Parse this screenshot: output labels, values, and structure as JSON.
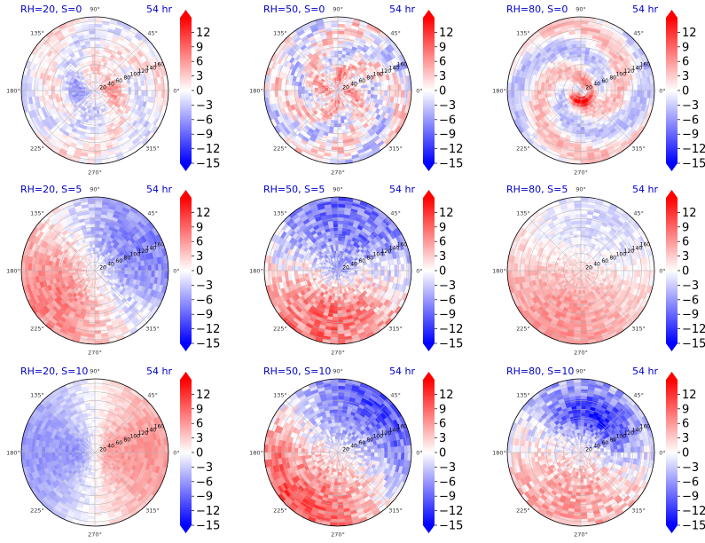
{
  "figure": {
    "rows": 3,
    "cols": 3,
    "time_label": "54 hr",
    "title_color": "#0000cc",
    "colormap": [
      "#0000ff",
      "#ffffff",
      "#ff0000"
    ],
    "colorbar_ticks": [
      "12",
      "9",
      "6",
      "3",
      "0",
      "−3",
      "−6",
      "−9",
      "−12",
      "−15"
    ],
    "colorbar_range": [
      -15,
      15
    ],
    "angle_labels": [
      "0°",
      "45°",
      "90°",
      "135°",
      "180°",
      "225°",
      "270°",
      "315°"
    ],
    "radial_labels": [
      "20",
      "40",
      "60",
      "80",
      "100",
      "120",
      "140",
      "160"
    ]
  },
  "chart_data": [
    {
      "type": "heatmap",
      "projection": "polar",
      "title": "RH=20, S=0",
      "time": "54 hr",
      "r_range": [
        0,
        170
      ],
      "theta_range": [
        0,
        360
      ],
      "pattern": "weak mixed anomalies, mostly near zero with scattered red near center",
      "value_range": [
        -6,
        6
      ],
      "colorbar_ticks": [
        12,
        9,
        6,
        3,
        0,
        -3,
        -6,
        -9,
        -12,
        -15
      ]
    },
    {
      "type": "heatmap",
      "projection": "polar",
      "title": "RH=50, S=0",
      "time": "54 hr",
      "r_range": [
        0,
        170
      ],
      "theta_range": [
        0,
        360
      ],
      "pattern": "mixed small-scale positive and negative anomalies, red concentrated near center",
      "value_range": [
        -9,
        9
      ],
      "colorbar_ticks": [
        12,
        9,
        6,
        3,
        0,
        -3,
        -6,
        -9,
        -12,
        -15
      ]
    },
    {
      "type": "heatmap",
      "projection": "polar",
      "title": "RH=80, S=0",
      "time": "54 hr",
      "r_range": [
        0,
        170
      ],
      "theta_range": [
        0,
        360
      ],
      "pattern": "strong positive ring near center (eyewall), positive spiral bands, weak negative elsewhere",
      "value_range": [
        -9,
        15
      ],
      "colorbar_ticks": [
        12,
        9,
        6,
        3,
        0,
        -3,
        -6,
        -9,
        -12,
        -15
      ]
    },
    {
      "type": "heatmap",
      "projection": "polar",
      "title": "RH=20, S=5",
      "time": "54 hr",
      "r_range": [
        0,
        170
      ],
      "theta_range": [
        0,
        360
      ],
      "pattern": "negative (blue) to the east/northeast, positive (red) to the west and south",
      "value_range": [
        -9,
        6
      ],
      "colorbar_ticks": [
        12,
        9,
        6,
        3,
        0,
        -3,
        -6,
        -9,
        -12,
        -15
      ]
    },
    {
      "type": "heatmap",
      "projection": "polar",
      "title": "RH=50, S=5",
      "time": "54 hr",
      "r_range": [
        0,
        170
      ],
      "theta_range": [
        0,
        360
      ],
      "pattern": "negative north and center, positive to the south/southwest",
      "value_range": [
        -12,
        9
      ],
      "colorbar_ticks": [
        12,
        9,
        6,
        3,
        0,
        -3,
        -6,
        -9,
        -12,
        -15
      ]
    },
    {
      "type": "heatmap",
      "projection": "polar",
      "title": "RH=80, S=5",
      "time": "54 hr",
      "r_range": [
        0,
        170
      ],
      "theta_range": [
        0,
        360
      ],
      "pattern": "weak negative north, weak positive south and west",
      "value_range": [
        -6,
        6
      ],
      "colorbar_ticks": [
        12,
        9,
        6,
        3,
        0,
        -3,
        -6,
        -9,
        -12,
        -15
      ]
    },
    {
      "type": "heatmap",
      "projection": "polar",
      "title": "RH=20, S=10",
      "time": "54 hr",
      "r_range": [
        0,
        170
      ],
      "theta_range": [
        0,
        360
      ],
      "pattern": "wavenumber-one: negative (blue) west half, positive (red) east half",
      "value_range": [
        -6,
        9
      ],
      "colorbar_ticks": [
        12,
        9,
        6,
        3,
        0,
        -3,
        -6,
        -9,
        -12,
        -15
      ]
    },
    {
      "type": "heatmap",
      "projection": "polar",
      "title": "RH=50, S=10",
      "time": "54 hr",
      "r_range": [
        0,
        170
      ],
      "theta_range": [
        0,
        360
      ],
      "pattern": "negative to the north/northeast, positive to the west and southeast",
      "value_range": [
        -12,
        9
      ],
      "colorbar_ticks": [
        12,
        9,
        6,
        3,
        0,
        -3,
        -6,
        -9,
        -12,
        -15
      ]
    },
    {
      "type": "heatmap",
      "projection": "polar",
      "title": "RH=80, S=10",
      "time": "54 hr",
      "r_range": [
        0,
        170
      ],
      "theta_range": [
        0,
        360
      ],
      "pattern": "strong negative north/northeast band, positive south and center",
      "value_range": [
        -12,
        12
      ],
      "colorbar_ticks": [
        12,
        9,
        6,
        3,
        0,
        -3,
        -6,
        -9,
        -12,
        -15
      ]
    }
  ]
}
